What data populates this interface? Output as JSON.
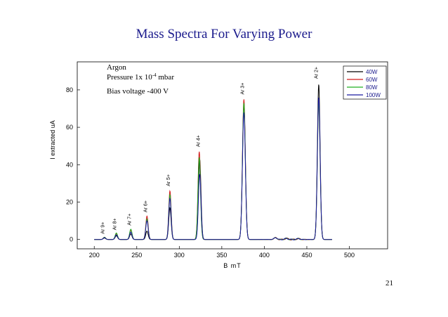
{
  "slide": {
    "title": "Mass Spectra For Varying Power",
    "page_number": "21"
  },
  "annotations": {
    "gas": "Argon",
    "pressure_prefix": "Pressure 1x 10",
    "pressure_exp": "-4",
    "pressure_unit": " mbar",
    "bias": "Bias voltage -400 V"
  },
  "chart_data": {
    "type": "line",
    "xlabel": "B mT",
    "ylabel": "I extracted uA",
    "xlim": [
      180,
      545
    ],
    "ylim": [
      -5,
      95
    ],
    "xticks": [
      200,
      250,
      300,
      350,
      400,
      450,
      500
    ],
    "yticks": [
      0,
      20,
      40,
      60,
      80
    ],
    "legend_position": "top-right",
    "grid": false,
    "x_range_data": [
      200,
      480
    ],
    "series": [
      {
        "name": "40W",
        "color": "#000000",
        "peaks": [
          [
            212,
            0.8
          ],
          [
            226,
            2
          ],
          [
            243,
            3
          ],
          [
            262,
            4.5
          ],
          [
            289,
            17
          ],
          [
            324,
            43
          ],
          [
            376,
            72
          ],
          [
            464,
            83
          ],
          [
            413,
            1
          ]
        ]
      },
      {
        "name": "60W",
        "color": "#d11a1a",
        "peaks": [
          [
            212,
            1.2
          ],
          [
            226,
            3
          ],
          [
            243,
            5
          ],
          [
            262,
            12.5
          ],
          [
            289,
            26
          ],
          [
            323.5,
            47
          ],
          [
            376,
            75
          ],
          [
            464,
            74
          ],
          [
            413,
            1
          ]
        ]
      },
      {
        "name": "80W",
        "color": "#22b022",
        "peaks": [
          [
            212,
            1.2
          ],
          [
            226,
            3.5
          ],
          [
            243,
            5.5
          ],
          [
            262,
            11
          ],
          [
            289,
            24
          ],
          [
            323.5,
            44
          ],
          [
            376,
            73
          ],
          [
            464,
            73
          ],
          [
            413,
            1
          ]
        ]
      },
      {
        "name": "100W",
        "color": "#1a1aa0",
        "peaks": [
          [
            212,
            1
          ],
          [
            226,
            2.5
          ],
          [
            243,
            4
          ],
          [
            262,
            10
          ],
          [
            289,
            22
          ],
          [
            324,
            35
          ],
          [
            376,
            68
          ],
          [
            464,
            76
          ],
          [
            413,
            1
          ]
        ]
      }
    ],
    "peak_labels": [
      {
        "text": "Ar 9+",
        "x": 212,
        "y": 3
      },
      {
        "text": "Ar 8+",
        "x": 226,
        "y": 5
      },
      {
        "text": "Ar 7+",
        "x": 243,
        "y": 7.5
      },
      {
        "text": "Ar 6+",
        "x": 262,
        "y": 14.5
      },
      {
        "text": "Ar 5+",
        "x": 289,
        "y": 28.5
      },
      {
        "text": "Ar 4+",
        "x": 324,
        "y": 49.5
      },
      {
        "text": "Ar 3+",
        "x": 376,
        "y": 77.5
      },
      {
        "text": "Ar 2+",
        "x": 463,
        "y": 86
      }
    ]
  }
}
